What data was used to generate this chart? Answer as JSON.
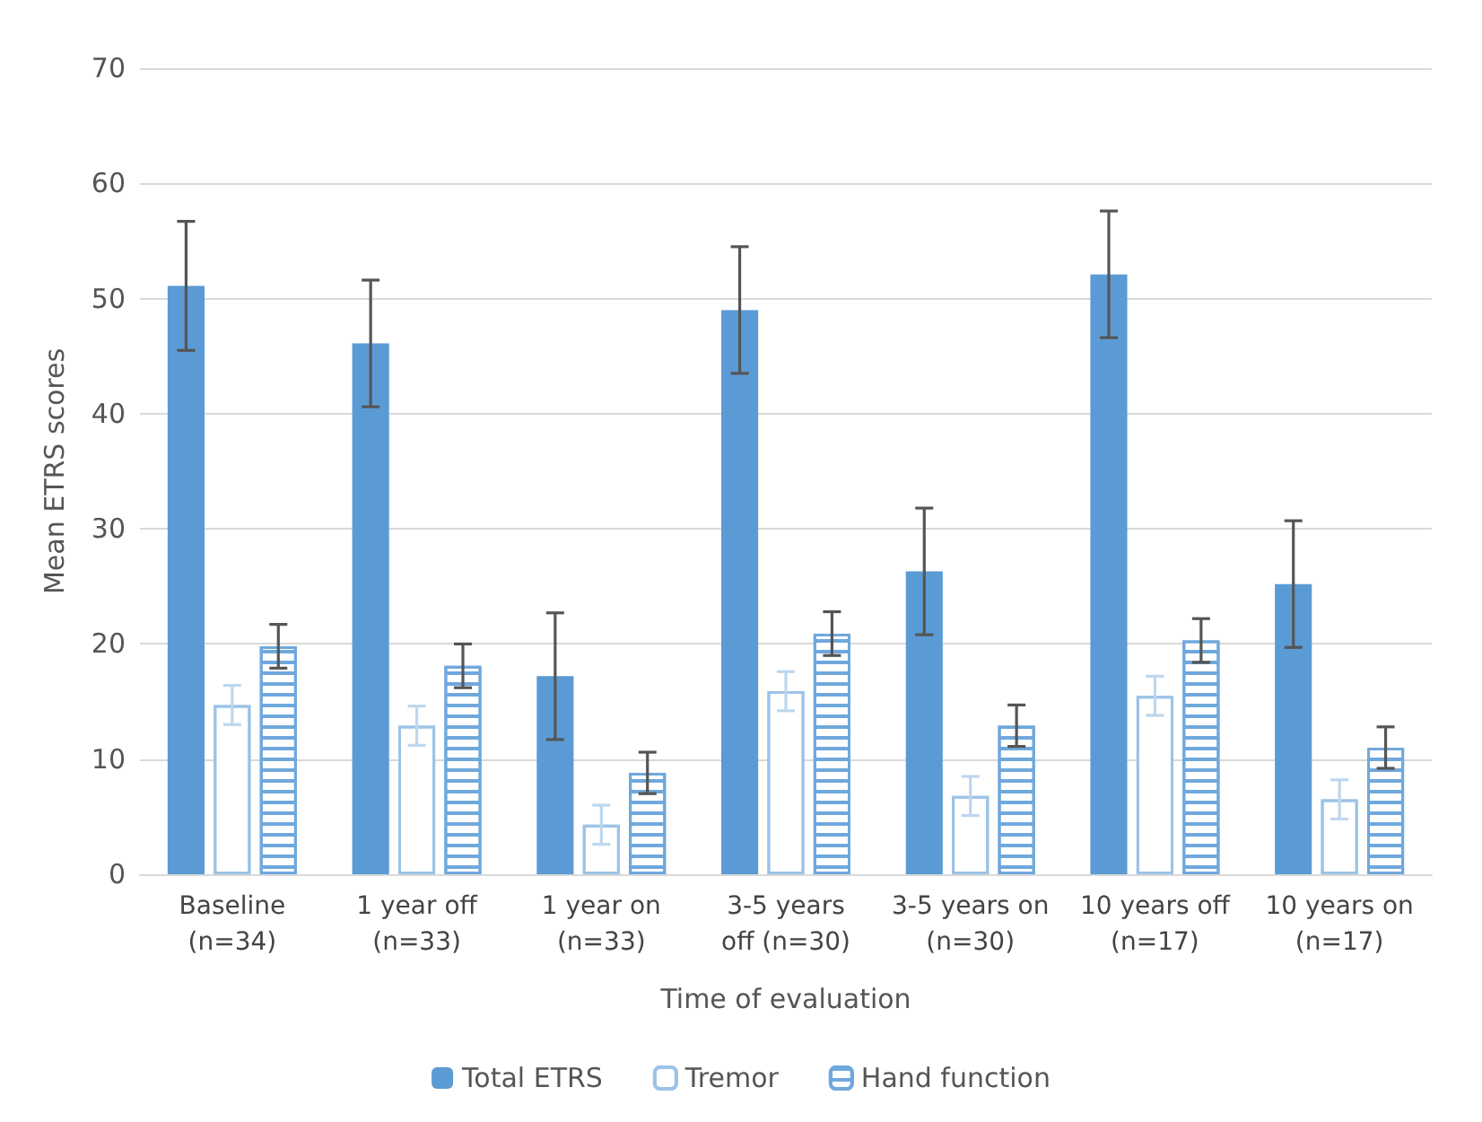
{
  "chart_data": {
    "type": "bar",
    "xlabel": "Time of evaluation",
    "ylabel": "Mean ETRS scores",
    "categories": [
      "Baseline\n(n=34)",
      "1 year off\n(n=33)",
      "1 year on\n(n=33)",
      "3-5 years\noff (n=30)",
      "3-5 years on\n(n=30)",
      "10 years off\n(n=17)",
      "10 years on\n(n=17)"
    ],
    "series": [
      {
        "name": "Total ETRS",
        "color": "#5b9bd5",
        "values": [
          51.1,
          46.1,
          17.2,
          49.0,
          26.3,
          52.1,
          25.2
        ],
        "errors": [
          5.6,
          5.5,
          5.5,
          5.5,
          5.5,
          5.5,
          5.5
        ]
      },
      {
        "name": "Tremor",
        "color": "#9dc3e6",
        "values": [
          14.7,
          12.9,
          4.3,
          15.9,
          6.8,
          15.5,
          6.5
        ],
        "errors": [
          1.7,
          1.7,
          1.7,
          1.7,
          1.7,
          1.7,
          1.7
        ]
      },
      {
        "name": "Hand function",
        "color": "#6fa8dc",
        "values": [
          19.8,
          18.1,
          8.8,
          20.9,
          12.9,
          20.3,
          11.0
        ],
        "errors": [
          1.9,
          1.9,
          1.8,
          1.9,
          1.8,
          1.9,
          1.8
        ]
      }
    ],
    "ylim": [
      0,
      70
    ],
    "yticks": [
      0,
      10,
      20,
      30,
      40,
      50,
      60,
      70
    ],
    "grid": "y",
    "legend": "bottom"
  }
}
